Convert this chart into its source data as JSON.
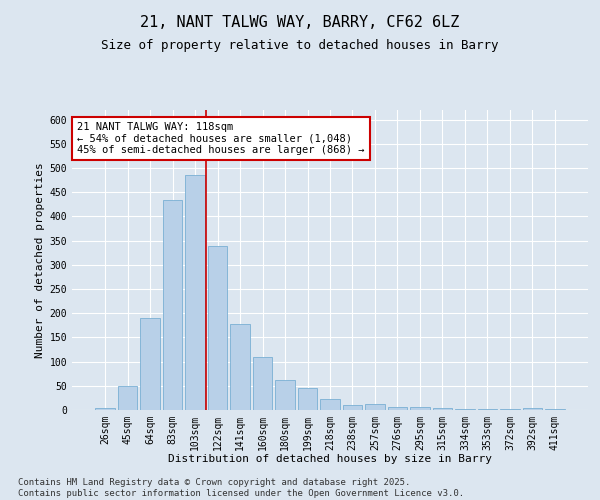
{
  "title": "21, NANT TALWG WAY, BARRY, CF62 6LZ",
  "subtitle": "Size of property relative to detached houses in Barry",
  "xlabel": "Distribution of detached houses by size in Barry",
  "ylabel": "Number of detached properties",
  "categories": [
    "26sqm",
    "45sqm",
    "64sqm",
    "83sqm",
    "103sqm",
    "122sqm",
    "141sqm",
    "160sqm",
    "180sqm",
    "199sqm",
    "218sqm",
    "238sqm",
    "257sqm",
    "276sqm",
    "295sqm",
    "315sqm",
    "334sqm",
    "353sqm",
    "372sqm",
    "392sqm",
    "411sqm"
  ],
  "values": [
    5,
    50,
    190,
    435,
    485,
    338,
    178,
    110,
    62,
    46,
    22,
    10,
    12,
    7,
    6,
    5,
    3,
    3,
    2,
    5,
    3
  ],
  "bar_color": "#b8d0e8",
  "bar_edge_color": "#7aafd4",
  "vline_x_index": 5,
  "vline_color": "#cc0000",
  "annotation_text": "21 NANT TALWG WAY: 118sqm\n← 54% of detached houses are smaller (1,048)\n45% of semi-detached houses are larger (868) →",
  "annotation_box_facecolor": "#ffffff",
  "annotation_box_edgecolor": "#cc0000",
  "ylim": [
    0,
    620
  ],
  "yticks": [
    0,
    50,
    100,
    150,
    200,
    250,
    300,
    350,
    400,
    450,
    500,
    550,
    600
  ],
  "background_color": "#dce6f0",
  "plot_background_color": "#dce6f0",
  "footer_text": "Contains HM Land Registry data © Crown copyright and database right 2025.\nContains public sector information licensed under the Open Government Licence v3.0.",
  "title_fontsize": 11,
  "subtitle_fontsize": 9,
  "xlabel_fontsize": 8,
  "ylabel_fontsize": 8,
  "tick_fontsize": 7,
  "annotation_fontsize": 7.5,
  "footer_fontsize": 6.5
}
